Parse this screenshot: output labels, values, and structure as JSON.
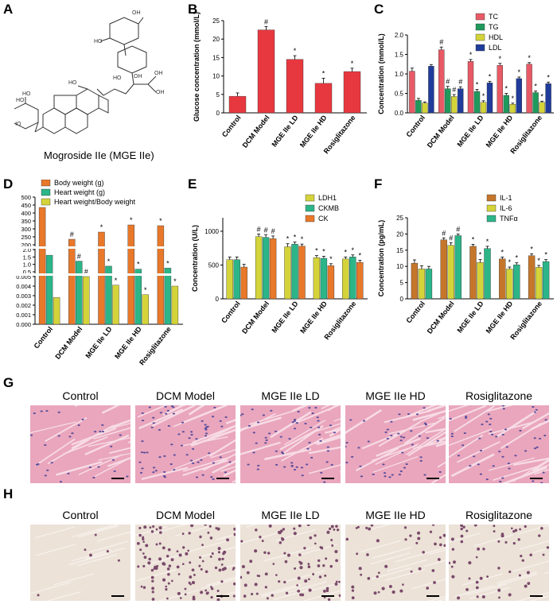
{
  "panels": {
    "A": "A",
    "B": "B",
    "C": "C",
    "D": "D",
    "E": "E",
    "F": "F",
    "G": "G",
    "H": "H"
  },
  "structure_caption": "Mogroside IIe (MGE IIe)",
  "groups": [
    "Control",
    "DCM Model",
    "MGE IIe LD",
    "MGE IIe HD",
    "Rosiglitazone"
  ],
  "colors": {
    "red": "#e8383f",
    "pink": "#e85a66",
    "green": "#1f9a5c",
    "yellow": "#d4d43a",
    "blue": "#1f3c9b",
    "orange": "#e8782a",
    "teal": "#2bb588",
    "brown": "#c5762b",
    "he_bg": "#e9a6bd",
    "ihc_bg": "#ece2d8"
  },
  "chart_data": [
    {
      "id": "B",
      "type": "bar",
      "categories": [
        "Control",
        "DCM Model",
        "MGE IIe LD",
        "MGE IIe HD",
        "Rosiglitazone"
      ],
      "values": [
        4.5,
        22.5,
        14.5,
        8.0,
        11.2
      ],
      "errors": [
        0.9,
        0.9,
        1.0,
        1.4,
        0.9
      ],
      "marks": [
        "",
        "#",
        "*",
        "*",
        "*"
      ],
      "ylabel": "Glucose concentration (mmol/L)",
      "ylim": [
        0,
        25
      ],
      "yticks": [
        "0",
        "5",
        "10",
        "15",
        "20",
        "25"
      ],
      "ytick_vals": [
        0,
        5,
        10,
        15,
        20,
        25
      ]
    },
    {
      "id": "C",
      "type": "bar",
      "categories": [
        "Control",
        "DCM Model",
        "MGE IIe LD",
        "MGE IIe HD",
        "Rosiglitazone"
      ],
      "series": [
        {
          "name": "TC",
          "values": [
            1.07,
            1.62,
            1.32,
            1.22,
            1.25
          ],
          "errors": [
            0.08,
            0.07,
            0.05,
            0.05,
            0.04
          ],
          "marks": [
            "",
            "#",
            "*",
            "*",
            "*"
          ]
        },
        {
          "name": "TG",
          "values": [
            0.32,
            0.62,
            0.55,
            0.45,
            0.52
          ],
          "errors": [
            0.05,
            0.06,
            0.05,
            0.05,
            0.04
          ],
          "marks": [
            "",
            "#",
            "*",
            "*",
            "*"
          ]
        },
        {
          "name": "HDL",
          "values": [
            0.25,
            0.42,
            0.27,
            0.22,
            0.27
          ],
          "errors": [
            0.03,
            0.05,
            0.04,
            0.03,
            0.03
          ],
          "marks": [
            "",
            "#",
            "*",
            "*",
            "*"
          ]
        },
        {
          "name": "LDL",
          "values": [
            1.2,
            0.62,
            0.77,
            0.88,
            0.75
          ],
          "errors": [
            0.04,
            0.05,
            0.04,
            0.04,
            0.04
          ],
          "marks": [
            "",
            "#",
            "*",
            "*",
            "*"
          ]
        }
      ],
      "ylabel": "Concentration (mmol/L)",
      "ylim": [
        0,
        2.0
      ],
      "yticks": [
        "0.0",
        "0.5",
        "1.0",
        "1.5",
        "2.0"
      ],
      "ytick_vals": [
        0,
        0.5,
        1.0,
        1.5,
        2.0
      ]
    },
    {
      "id": "D",
      "type": "bar",
      "categories": [
        "Control",
        "DCM Model",
        "MGE IIe LD",
        "MGE IIe HD",
        "Rosiglitazone"
      ],
      "series": [
        {
          "name": "Body weight (g)",
          "values": [
            435,
            235,
            280,
            325,
            320
          ],
          "marks": [
            "",
            "#",
            "*",
            "*",
            "*"
          ]
        },
        {
          "name": "Heart weight (g)",
          "values": [
            1.62,
            1.22,
            0.88,
            0.68,
            0.75
          ],
          "marks": [
            "",
            "#",
            "*",
            "*",
            "*"
          ]
        },
        {
          "name": "Heart weight/Body weight",
          "values": [
            0.0028,
            0.005,
            0.0041,
            0.0031,
            0.004
          ],
          "marks": [
            "",
            "#",
            "*",
            "*",
            "*"
          ]
        }
      ],
      "yticks_low": [
        "0.000",
        "0.001",
        "0.002",
        "0.003",
        "0.004",
        "0.005"
      ],
      "yticks_mid": [
        "0.5",
        "1.0",
        "1.5",
        "2.0"
      ],
      "yticks_high": [
        "200",
        "250",
        "300",
        "350",
        "400",
        "450",
        "500"
      ]
    },
    {
      "id": "E",
      "type": "bar",
      "categories": [
        "Control",
        "DCM Model",
        "MGE IIe LD",
        "MGE IIe HD",
        "Rosiglitazone"
      ],
      "series": [
        {
          "name": "LDH1",
          "values": [
            580,
            920,
            770,
            610,
            590
          ],
          "errors": [
            40,
            40,
            45,
            30,
            30
          ],
          "marks": [
            "",
            "#",
            "*",
            "*",
            "*"
          ]
        },
        {
          "name": "CKMB",
          "values": [
            580,
            910,
            810,
            600,
            620
          ],
          "errors": [
            40,
            40,
            30,
            30,
            30
          ],
          "marks": [
            "",
            "#",
            "*",
            "*",
            "*"
          ]
        },
        {
          "name": "CK",
          "values": [
            470,
            890,
            780,
            490,
            540
          ],
          "errors": [
            40,
            40,
            30,
            30,
            30
          ],
          "marks": [
            "",
            "#",
            "*",
            "*",
            "*"
          ]
        }
      ],
      "ylabel": "Concentration (U/L)",
      "ylim": [
        0,
        1200
      ],
      "yticks": [
        "0",
        "500",
        "1000"
      ],
      "ytick_vals": [
        0,
        500,
        1000
      ]
    },
    {
      "id": "F",
      "type": "bar",
      "categories": [
        "Control",
        "DCM Model",
        "MGE IIe LD",
        "MGE IIe HD",
        "Rosiglitazone"
      ],
      "series": [
        {
          "name": "IL-1",
          "values": [
            11.0,
            18.2,
            16.2,
            12.3,
            13.3
          ],
          "errors": [
            1.0,
            0.6,
            0.6,
            0.6,
            0.6
          ],
          "marks": [
            "",
            "#",
            "*",
            "*",
            "*"
          ]
        },
        {
          "name": "IL-6",
          "values": [
            9.2,
            16.5,
            11.2,
            9.2,
            9.7
          ],
          "errors": [
            1.0,
            0.8,
            0.9,
            0.6,
            0.6
          ],
          "marks": [
            "",
            "#",
            "*",
            "*",
            "*"
          ]
        },
        {
          "name": "TNFα",
          "values": [
            9.2,
            19.5,
            15.5,
            10.5,
            11.5
          ],
          "errors": [
            0.8,
            0.5,
            0.7,
            0.6,
            0.6
          ],
          "marks": [
            "",
            "#",
            "*",
            "*",
            "*"
          ]
        }
      ],
      "ylabel": "Concentration (pg/mL)",
      "ylim": [
        0,
        25
      ],
      "yticks": [
        "0",
        "5",
        "10",
        "15",
        "20",
        "25"
      ],
      "ytick_vals": [
        0,
        5,
        10,
        15,
        20,
        25
      ]
    }
  ]
}
